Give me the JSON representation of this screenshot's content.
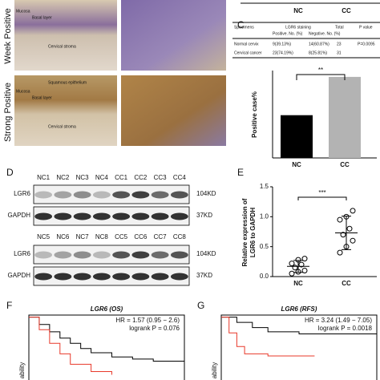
{
  "top_strip": {
    "labels": [
      "NC",
      "CC"
    ]
  },
  "panel_labels": {
    "C": "C",
    "D": "D",
    "E": "E",
    "F": "F",
    "G": "G"
  },
  "histology": {
    "row_labels": [
      "Week Positive",
      "Strong Positive"
    ],
    "row1": [
      "Mucosa",
      "Basal layer",
      "Cervical stroma"
    ],
    "row2": [
      "Squamous epithelium",
      "Mucosa",
      "Basal layer",
      "Cervical stroma"
    ]
  },
  "table": {
    "header": [
      "Specimens",
      "LGR6 staining",
      "Total",
      "P value"
    ],
    "subheader": [
      "Positive. No. (%)",
      "Negative. No. (%)"
    ],
    "rows": [
      [
        "Normal cervix",
        "9(39.13%)",
        "14(60.87%)",
        "23",
        "P=0.0095"
      ],
      [
        "Cervical cancer",
        "23(74.19%)",
        "8(25.81%)",
        "31",
        ""
      ]
    ]
  },
  "blot": {
    "lanes_top": [
      "NC1",
      "NC2",
      "NC3",
      "NC4",
      "CC1",
      "CC2",
      "CC3",
      "CC4"
    ],
    "lanes_bottom": [
      "NC5",
      "NC6",
      "NC7",
      "NC8",
      "CC5",
      "CC6",
      "CC7",
      "CC8"
    ],
    "rows": [
      "LGR6",
      "GAPDH"
    ],
    "sizes": [
      "104KD",
      "37KD"
    ]
  },
  "chart_data": [
    {
      "type": "bar",
      "ylabel": "Positive case%",
      "categories": [
        "NC",
        "CC"
      ],
      "values": [
        39.13,
        74.19
      ],
      "colors": [
        "#000000",
        "#b3b3b3"
      ],
      "ylim": [
        0,
        80
      ],
      "annotation": "**"
    },
    {
      "type": "dot",
      "ylabel": [
        "Relative expression of",
        "LGR6 to GAPDH"
      ],
      "categories": [
        "NC",
        "CC"
      ],
      "values": [
        [
          0.05,
          0.08,
          0.1,
          0.15,
          0.2,
          0.22,
          0.28,
          0.3
        ],
        [
          0.4,
          0.5,
          0.6,
          0.7,
          0.8,
          0.95,
          1.0,
          1.1
        ]
      ],
      "means": [
        0.17,
        0.73
      ],
      "sds": [
        0.1,
        0.28
      ],
      "ylim": [
        0,
        1.5
      ],
      "yticks": [
        {
          "value": 0,
          "label": "0.0"
        },
        {
          "value": 0.5,
          "label": "0.5"
        },
        {
          "value": 1,
          "label": "1.0"
        },
        {
          "value": 1.5,
          "label": "1.5"
        }
      ],
      "annotation": "***"
    },
    {
      "type": "km",
      "title": "LGR6 (OS)",
      "hr": "HR = 1.57 (0.95 − 2.6)",
      "p": "logrank P = 0.076",
      "ylabel": "ability",
      "xlim": [
        0,
        150
      ],
      "ylim": [
        0.4,
        1.02
      ],
      "series": [
        {
          "color": "#000000",
          "x": [
            0,
            10,
            20,
            30,
            40,
            50,
            60,
            80,
            100,
            120,
            150
          ],
          "y": [
            1,
            0.93,
            0.86,
            0.8,
            0.75,
            0.7,
            0.66,
            0.62,
            0.6,
            0.58,
            0.56
          ]
        },
        {
          "color": "#e8392a",
          "x": [
            0,
            10,
            20,
            30,
            40,
            60,
            80
          ],
          "y": [
            1,
            0.88,
            0.75,
            0.65,
            0.55,
            0.48,
            0.45
          ]
        }
      ]
    },
    {
      "type": "km",
      "title": "LGR6 (RFS)",
      "hr": "HR = 3.24 (1.49 − 7.05)",
      "p": "logrank P = 0.0018",
      "ylabel": "ability",
      "xlim": [
        0,
        200
      ],
      "ylim": [
        0.4,
        1.02
      ],
      "series": [
        {
          "color": "#000000",
          "x": [
            0,
            20,
            40,
            60,
            100,
            150,
            200
          ],
          "y": [
            1,
            0.95,
            0.9,
            0.86,
            0.84,
            0.84,
            0.84
          ]
        },
        {
          "color": "#e8392a",
          "x": [
            0,
            10,
            20,
            30,
            60,
            120
          ],
          "y": [
            1,
            0.85,
            0.72,
            0.65,
            0.63,
            0.63
          ]
        }
      ]
    }
  ]
}
